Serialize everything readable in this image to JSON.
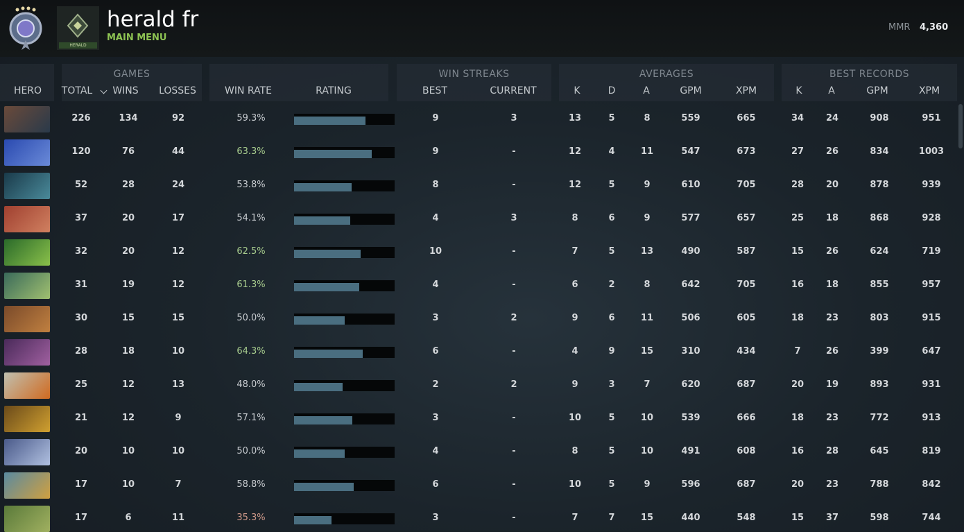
{
  "header": {
    "player_name": "herald fr",
    "subtitle": "MAIN MENU",
    "badge_label": "HERALD",
    "mmr_label": "MMR",
    "mmr_value": "4,360"
  },
  "table": {
    "groups": [
      {
        "label": "GAMES"
      },
      {
        "label": "WIN STREAKS"
      },
      {
        "label": "AVERAGES"
      },
      {
        "label": "BEST RECORDS"
      }
    ],
    "columns": [
      "HERO",
      "TOTAL",
      "WINS",
      "LOSSES",
      "WIN RATE",
      "RATING",
      "BEST",
      "CURRENT",
      "K",
      "D",
      "A",
      "GPM",
      "XPM",
      "K",
      "A",
      "GPM",
      "XPM"
    ],
    "rows": [
      {
        "cells": [
          "226",
          "134",
          "92",
          "59.3%",
          "9",
          "3",
          "13",
          "5",
          "8",
          "559",
          "665",
          "34",
          "24",
          "908",
          "951"
        ],
        "rating": 71,
        "winrate_color": "#c8ccd0"
      },
      {
        "cells": [
          "120",
          "76",
          "44",
          "63.3%",
          "9",
          "-",
          "12",
          "4",
          "11",
          "547",
          "673",
          "27",
          "26",
          "834",
          "1003"
        ],
        "rating": 77,
        "winrate_color": "#a8cc8e"
      },
      {
        "cells": [
          "52",
          "28",
          "24",
          "53.8%",
          "8",
          "-",
          "12",
          "5",
          "9",
          "610",
          "705",
          "28",
          "20",
          "878",
          "939"
        ],
        "rating": 57,
        "winrate_color": "#c8ccd0"
      },
      {
        "cells": [
          "37",
          "20",
          "17",
          "54.1%",
          "4",
          "3",
          "8",
          "6",
          "9",
          "577",
          "657",
          "25",
          "18",
          "868",
          "928"
        ],
        "rating": 56,
        "winrate_color": "#c8ccd0"
      },
      {
        "cells": [
          "32",
          "20",
          "12",
          "62.5%",
          "10",
          "-",
          "7",
          "5",
          "13",
          "490",
          "587",
          "15",
          "26",
          "624",
          "719"
        ],
        "rating": 66,
        "winrate_color": "#a8cc8e"
      },
      {
        "cells": [
          "31",
          "19",
          "12",
          "61.3%",
          "4",
          "-",
          "6",
          "2",
          "8",
          "642",
          "705",
          "16",
          "18",
          "855",
          "957"
        ],
        "rating": 65,
        "winrate_color": "#a8cc8e"
      },
      {
        "cells": [
          "30",
          "15",
          "15",
          "50.0%",
          "3",
          "2",
          "9",
          "6",
          "11",
          "506",
          "605",
          "18",
          "23",
          "803",
          "915"
        ],
        "rating": 50,
        "winrate_color": "#c8ccd0"
      },
      {
        "cells": [
          "28",
          "18",
          "10",
          "64.3%",
          "6",
          "-",
          "4",
          "9",
          "15",
          "310",
          "434",
          "7",
          "26",
          "399",
          "647"
        ],
        "rating": 68,
        "winrate_color": "#a8cc8e"
      },
      {
        "cells": [
          "25",
          "12",
          "13",
          "48.0%",
          "2",
          "2",
          "9",
          "3",
          "7",
          "620",
          "687",
          "20",
          "19",
          "893",
          "931"
        ],
        "rating": 48,
        "winrate_color": "#c8ccd0"
      },
      {
        "cells": [
          "21",
          "12",
          "9",
          "57.1%",
          "3",
          "-",
          "10",
          "5",
          "10",
          "539",
          "666",
          "18",
          "23",
          "772",
          "913"
        ],
        "rating": 58,
        "winrate_color": "#c8ccd0"
      },
      {
        "cells": [
          "20",
          "10",
          "10",
          "50.0%",
          "4",
          "-",
          "8",
          "5",
          "10",
          "491",
          "608",
          "16",
          "28",
          "645",
          "819"
        ],
        "rating": 50,
        "winrate_color": "#c8ccd0"
      },
      {
        "cells": [
          "17",
          "10",
          "7",
          "58.8%",
          "6",
          "-",
          "10",
          "5",
          "9",
          "596",
          "687",
          "20",
          "23",
          "788",
          "842"
        ],
        "rating": 59,
        "winrate_color": "#c8ccd0"
      },
      {
        "cells": [
          "17",
          "6",
          "11",
          "35.3%",
          "3",
          "-",
          "7",
          "7",
          "15",
          "440",
          "548",
          "15",
          "37",
          "598",
          "744"
        ],
        "rating": 37,
        "winrate_color": "#d09a8a"
      }
    ]
  }
}
